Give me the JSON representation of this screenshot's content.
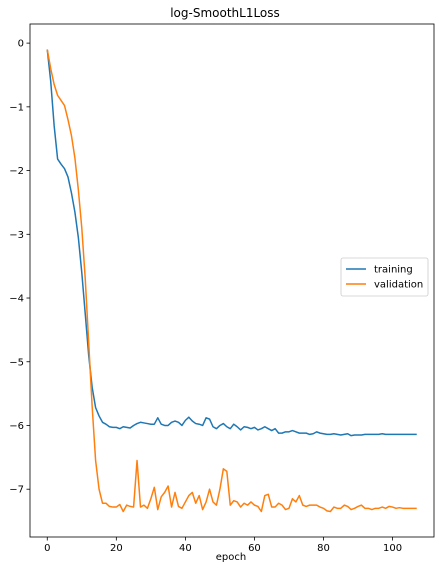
{
  "chart_data": {
    "type": "line",
    "title": "log-SmoothL1Loss",
    "xlabel": "epoch",
    "ylabel": "",
    "xlim": [
      -5,
      112
    ],
    "ylim": [
      -7.75,
      0.3
    ],
    "xticks": [
      0,
      20,
      40,
      60,
      80,
      100
    ],
    "yticks": [
      0,
      -1,
      -2,
      -3,
      -4,
      -5,
      -6,
      -7
    ],
    "ytick_labels": [
      "0",
      "−1",
      "−2",
      "−3",
      "−4",
      "−5",
      "−6",
      "−7"
    ],
    "grid": false,
    "legend_position": "center-right",
    "series": [
      {
        "name": "training",
        "color": "#1f77b4",
        "x": [
          0,
          1,
          2,
          3,
          4,
          5,
          6,
          7,
          8,
          9,
          10,
          11,
          12,
          13,
          14,
          15,
          16,
          17,
          18,
          19,
          20,
          21,
          22,
          23,
          24,
          25,
          26,
          27,
          28,
          29,
          30,
          31,
          32,
          33,
          34,
          35,
          36,
          37,
          38,
          39,
          40,
          41,
          42,
          43,
          44,
          45,
          46,
          47,
          48,
          49,
          50,
          51,
          52,
          53,
          54,
          55,
          56,
          57,
          58,
          59,
          60,
          61,
          62,
          63,
          64,
          65,
          66,
          67,
          68,
          69,
          70,
          71,
          72,
          73,
          74,
          75,
          76,
          77,
          78,
          79,
          80,
          81,
          82,
          83,
          84,
          85,
          86,
          87,
          88,
          89,
          90,
          91,
          92,
          93,
          94,
          95,
          96,
          97,
          98,
          99,
          100,
          101,
          102,
          103,
          104,
          105,
          106,
          107
        ],
        "y": [
          -0.1,
          -0.6,
          -1.3,
          -1.82,
          -1.9,
          -1.97,
          -2.1,
          -2.35,
          -2.65,
          -3.05,
          -3.6,
          -4.25,
          -4.9,
          -5.4,
          -5.72,
          -5.85,
          -5.95,
          -5.98,
          -6.02,
          -6.03,
          -6.03,
          -6.05,
          -6.02,
          -6.03,
          -6.04,
          -6.0,
          -5.97,
          -5.95,
          -5.96,
          -5.97,
          -5.98,
          -5.98,
          -5.88,
          -5.98,
          -6.0,
          -6.0,
          -5.95,
          -5.93,
          -5.95,
          -6.0,
          -5.92,
          -5.87,
          -5.93,
          -5.97,
          -5.98,
          -6.0,
          -5.88,
          -5.9,
          -6.02,
          -6.05,
          -6.0,
          -5.97,
          -6.02,
          -6.05,
          -5.98,
          -6.02,
          -6.07,
          -6.02,
          -6.03,
          -6.05,
          -6.03,
          -6.07,
          -6.05,
          -6.02,
          -6.05,
          -6.08,
          -6.05,
          -6.12,
          -6.12,
          -6.1,
          -6.1,
          -6.08,
          -6.1,
          -6.12,
          -6.12,
          -6.12,
          -6.14,
          -6.13,
          -6.1,
          -6.12,
          -6.13,
          -6.14,
          -6.14,
          -6.13,
          -6.14,
          -6.15,
          -6.14,
          -6.13,
          -6.16,
          -6.15,
          -6.15,
          -6.15,
          -6.14,
          -6.14,
          -6.14,
          -6.14,
          -6.14,
          -6.13,
          -6.14,
          -6.14,
          -6.14,
          -6.14,
          -6.14,
          -6.14,
          -6.14,
          -6.14,
          -6.14,
          -6.14
        ]
      },
      {
        "name": "validation",
        "color": "#ff7f0e",
        "x": [
          0,
          1,
          2,
          3,
          4,
          5,
          6,
          7,
          8,
          9,
          10,
          11,
          12,
          13,
          14,
          15,
          16,
          17,
          18,
          19,
          20,
          21,
          22,
          23,
          24,
          25,
          26,
          27,
          28,
          29,
          30,
          31,
          32,
          33,
          34,
          35,
          36,
          37,
          38,
          39,
          40,
          41,
          42,
          43,
          44,
          45,
          46,
          47,
          48,
          49,
          50,
          51,
          52,
          53,
          54,
          55,
          56,
          57,
          58,
          59,
          60,
          61,
          62,
          63,
          64,
          65,
          66,
          67,
          68,
          69,
          70,
          71,
          72,
          73,
          74,
          75,
          76,
          77,
          78,
          79,
          80,
          81,
          82,
          83,
          84,
          85,
          86,
          87,
          88,
          89,
          90,
          91,
          92,
          93,
          94,
          95,
          96,
          97,
          98,
          99,
          100,
          101,
          102,
          103,
          104,
          105,
          106,
          107
        ],
        "y": [
          -0.1,
          -0.4,
          -0.65,
          -0.82,
          -0.9,
          -0.98,
          -1.2,
          -1.45,
          -1.8,
          -2.3,
          -2.9,
          -3.7,
          -4.7,
          -5.7,
          -6.55,
          -7.0,
          -7.22,
          -7.22,
          -7.27,
          -7.28,
          -7.28,
          -7.24,
          -7.35,
          -7.25,
          -7.27,
          -7.28,
          -6.55,
          -7.28,
          -7.25,
          -7.3,
          -7.15,
          -6.97,
          -7.32,
          -7.12,
          -7.05,
          -6.95,
          -7.28,
          -7.05,
          -7.27,
          -7.3,
          -7.2,
          -7.1,
          -7.05,
          -7.22,
          -7.1,
          -7.32,
          -7.2,
          -7.0,
          -7.2,
          -7.25,
          -7.0,
          -6.68,
          -6.72,
          -7.25,
          -7.18,
          -7.2,
          -7.28,
          -7.22,
          -7.25,
          -7.2,
          -7.25,
          -7.27,
          -7.35,
          -7.1,
          -7.08,
          -7.28,
          -7.28,
          -7.22,
          -7.25,
          -7.32,
          -7.3,
          -7.15,
          -7.2,
          -7.1,
          -7.25,
          -7.27,
          -7.25,
          -7.25,
          -7.25,
          -7.28,
          -7.3,
          -7.34,
          -7.35,
          -7.28,
          -7.3,
          -7.3,
          -7.25,
          -7.27,
          -7.32,
          -7.3,
          -7.27,
          -7.25,
          -7.3,
          -7.3,
          -7.32,
          -7.3,
          -7.3,
          -7.28,
          -7.3,
          -7.27,
          -7.28,
          -7.3,
          -7.29,
          -7.3,
          -7.3,
          -7.3,
          -7.3,
          -7.3
        ]
      }
    ]
  }
}
